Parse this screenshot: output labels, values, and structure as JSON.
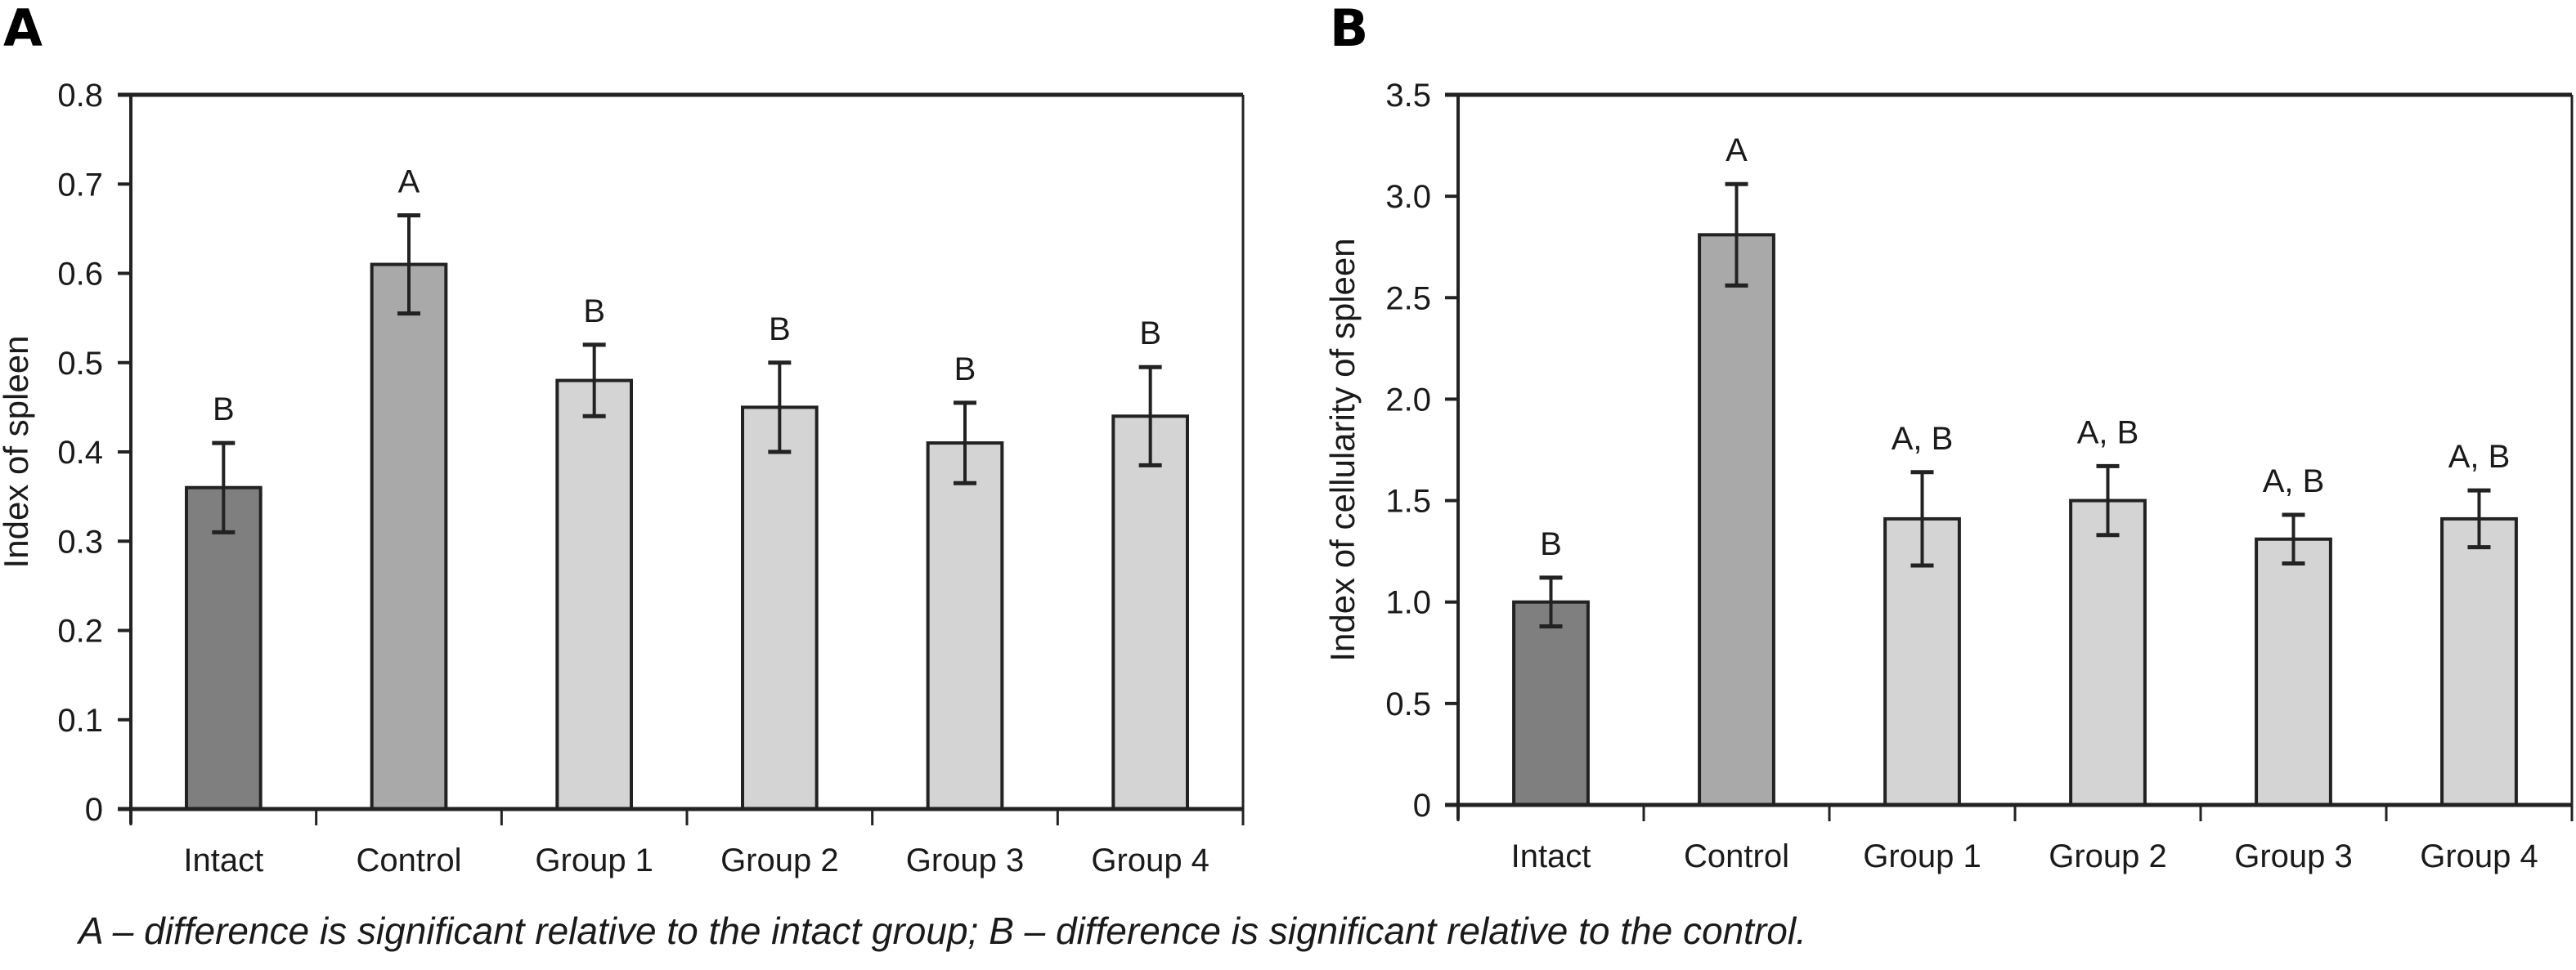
{
  "chart_data": [
    {
      "type": "bar",
      "panel": "A",
      "title": "",
      "xlabel": "",
      "ylabel": "Index of spleen",
      "ylim": [
        0,
        0.8
      ],
      "yticks": [
        "0",
        "0.1",
        "0.2",
        "0.3",
        "0.4",
        "0.5",
        "0.6",
        "0.7",
        "0.8"
      ],
      "ytick_values": [
        0,
        0.1,
        0.2,
        0.3,
        0.4,
        0.5,
        0.6,
        0.7,
        0.8
      ],
      "categories": [
        "Intact",
        "Control",
        "Group 1",
        "Group 2",
        "Group 3",
        "Group 4"
      ],
      "values": [
        0.36,
        0.61,
        0.48,
        0.45,
        0.41,
        0.44
      ],
      "errors": [
        0.05,
        0.055,
        0.04,
        0.05,
        0.045,
        0.055
      ],
      "significance": [
        "B",
        "A",
        "B",
        "B",
        "B",
        "B"
      ],
      "colors": [
        "#7f7f7f",
        "#a9a9a9",
        "#d4d4d4",
        "#d4d4d4",
        "#d4d4d4",
        "#d4d4d4"
      ],
      "grid": false
    },
    {
      "type": "bar",
      "panel": "B",
      "title": "",
      "xlabel": "",
      "ylabel": "Index of cellularity of spleen",
      "ylim": [
        0,
        3.5
      ],
      "yticks": [
        "0",
        "0.5",
        "1.0",
        "1.5",
        "2.0",
        "2.5",
        "3.0",
        "3.5"
      ],
      "ytick_values": [
        0,
        0.5,
        1.0,
        1.5,
        2.0,
        2.5,
        3.0,
        3.5
      ],
      "categories": [
        "Intact",
        "Control",
        "Group 1",
        "Group 2",
        "Group 3",
        "Group 4"
      ],
      "values": [
        1.0,
        2.81,
        1.41,
        1.5,
        1.31,
        1.41
      ],
      "errors": [
        0.12,
        0.25,
        0.23,
        0.17,
        0.12,
        0.14
      ],
      "significance": [
        "B",
        "A",
        "A, B",
        "A, B",
        "A, B",
        "A, B"
      ],
      "colors": [
        "#7f7f7f",
        "#a9a9a9",
        "#d4d4d4",
        "#d4d4d4",
        "#d4d4d4",
        "#d4d4d4"
      ],
      "grid": false
    }
  ],
  "panels": {
    "a_letter": "A",
    "b_letter": "B"
  },
  "caption": "A – difference is significant relative to the intact group; B – difference is significant relative to the control.",
  "colors": {
    "axis": "#222222",
    "bar_stroke": "#222222"
  }
}
